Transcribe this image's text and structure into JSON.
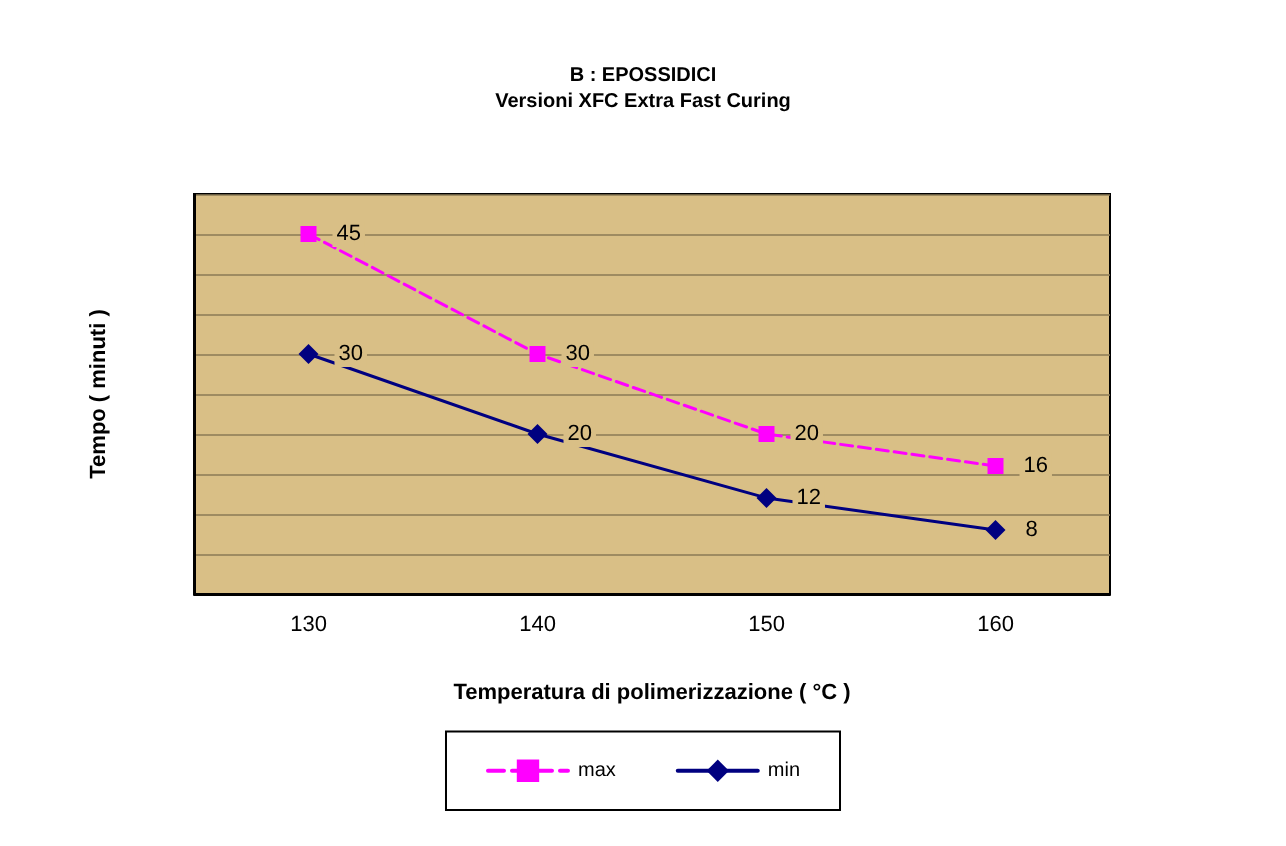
{
  "chart_data": {
    "type": "line",
    "title": "B : EPOSSIDICI",
    "subtitle": "Versioni XFC Extra Fast Curing",
    "xlabel": "Temperatura di polimerizzazione ( °C )",
    "ylabel": "Tempo ( minuti )",
    "categories": [
      "130",
      "140",
      "150",
      "160"
    ],
    "series": [
      {
        "name": "max",
        "color": "#ff00ff",
        "values": [
          45,
          30,
          20,
          16
        ],
        "marker": "square",
        "line_style": "dashed"
      },
      {
        "name": "min",
        "color": "#000080",
        "values": [
          30,
          20,
          12,
          8
        ],
        "marker": "diamond",
        "line_style": "solid"
      }
    ],
    "ylim": [
      0,
      50
    ],
    "yticks": [
      {
        "value": 0,
        "label": null
      },
      {
        "value": 5,
        "label": null
      },
      {
        "value": 10,
        "label": null
      },
      {
        "value": 15,
        "label": null
      },
      {
        "value": 20,
        "label": null
      },
      {
        "value": 25,
        "label": null
      },
      {
        "value": 30,
        "label": null
      },
      {
        "value": 35,
        "label": null
      },
      {
        "value": 40,
        "label": null
      },
      {
        "value": 45,
        "label": null
      },
      {
        "value": 50,
        "label": null
      }
    ],
    "data_labels": true,
    "grid": "y",
    "legend": "bottom",
    "tick_labels": "x"
  }
}
